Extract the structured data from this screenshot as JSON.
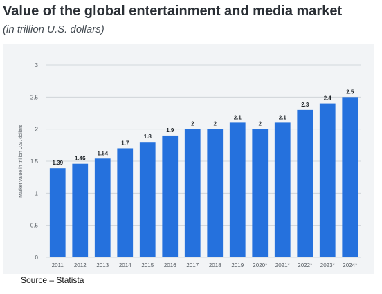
{
  "header": {
    "title": "Value of the global entertainment and media market",
    "subtitle": "(in trillion U.S. dollars)"
  },
  "footer": {
    "source": "Source – Statista"
  },
  "colors": {
    "bar": "#2571dd",
    "grid": "#c9ced3",
    "panel_background": "#f2f4f6"
  },
  "chart_data": {
    "type": "bar",
    "title": "Value of the global entertainment and media market",
    "subtitle": "(in trillion U.S. dollars)",
    "xlabel": "",
    "ylabel": "Market value in trillion U.S. dollars",
    "ylim": [
      0,
      3
    ],
    "yticks": [
      0,
      0.5,
      1,
      1.5,
      2,
      2.5,
      3
    ],
    "ytick_labels": [
      "0",
      "0.5",
      "1",
      "1.5",
      "2",
      "2.5",
      "3"
    ],
    "grid": true,
    "categories": [
      "2011",
      "2012",
      "2013",
      "2014",
      "2015",
      "2016",
      "2017",
      "2018",
      "2019",
      "2020*",
      "2021*",
      "2022*",
      "2023*",
      "2024*"
    ],
    "values": [
      1.39,
      1.46,
      1.54,
      1.7,
      1.8,
      1.9,
      2,
      2,
      2.1,
      2,
      2.1,
      2.3,
      2.4,
      2.5
    ],
    "value_labels": [
      "1.39",
      "1.46",
      "1.54",
      "1.7",
      "1.8",
      "1.9",
      "2",
      "2",
      "2.1",
      "2",
      "2.1",
      "2.3",
      "2.4",
      "2.5"
    ]
  }
}
